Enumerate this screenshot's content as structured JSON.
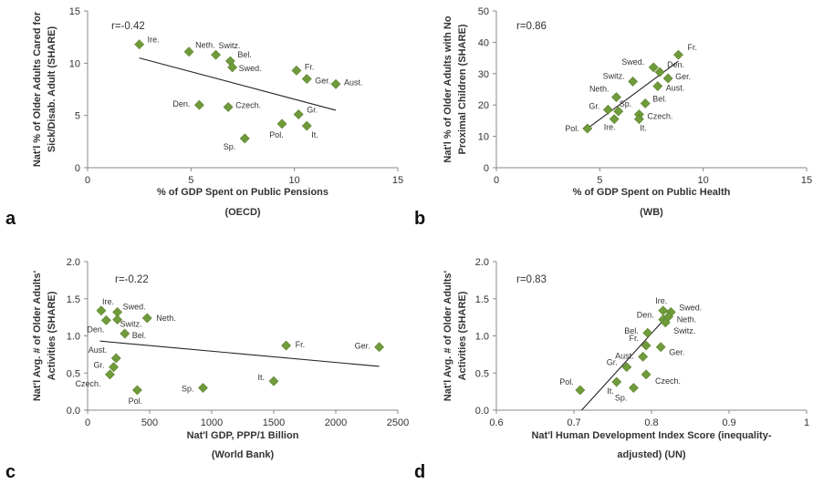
{
  "chart_data": [
    {
      "type": "scatter",
      "panel_letter": "a",
      "correlation": "r=-0.42",
      "xlabel": [
        "% of GDP Spent on Public Pensions",
        "(OECD)"
      ],
      "ylabel": [
        "Nat'l % of Older Adults Cared for",
        "Sick/Disab. Adult (SHARE)"
      ],
      "xlim": [
        0,
        15
      ],
      "ylim": [
        0,
        15
      ],
      "xticks": [
        0,
        5,
        10,
        15
      ],
      "yticks": [
        0,
        5,
        10,
        15
      ],
      "xtick_labels": [
        "0",
        "5",
        "10",
        "15"
      ],
      "ytick_labels": [
        "0",
        "5",
        "10",
        "15"
      ],
      "points": [
        {
          "label": "Ire.",
          "x": 2.5,
          "y": 11.8
        },
        {
          "label": "Neth.",
          "x": 4.9,
          "y": 11.1
        },
        {
          "label": "Switz.",
          "x": 6.2,
          "y": 10.8
        },
        {
          "label": "Bel.",
          "x": 6.9,
          "y": 10.2
        },
        {
          "label": "Swed.",
          "x": 7.0,
          "y": 9.6
        },
        {
          "label": "Fr.",
          "x": 10.1,
          "y": 9.3
        },
        {
          "label": "Ger.",
          "x": 10.6,
          "y": 8.5
        },
        {
          "label": "Aust.",
          "x": 12.0,
          "y": 8.0
        },
        {
          "label": "Den.",
          "x": 5.4,
          "y": 6.0
        },
        {
          "label": "Czech.",
          "x": 6.8,
          "y": 5.8
        },
        {
          "label": "Gr.",
          "x": 10.2,
          "y": 5.1
        },
        {
          "label": "Pol.",
          "x": 9.4,
          "y": 4.2
        },
        {
          "label": "It.",
          "x": 10.6,
          "y": 4.0
        },
        {
          "label": "Sp.",
          "x": 7.6,
          "y": 2.8
        }
      ],
      "trend": [
        [
          2.5,
          10.5
        ],
        [
          12.0,
          5.5
        ]
      ],
      "color": "#6f9b3a"
    },
    {
      "type": "scatter",
      "panel_letter": "b",
      "correlation": "r=0.86",
      "xlabel": [
        "% of GDP Spent on Public Health",
        "(WB)"
      ],
      "ylabel": [
        "Nat'l % of Older Adults with No",
        "Proximal Children (SHARE)"
      ],
      "xlim": [
        0,
        15
      ],
      "ylim": [
        0,
        50
      ],
      "xticks": [
        0,
        5,
        10,
        15
      ],
      "yticks": [
        0,
        10,
        20,
        30,
        40,
        50
      ],
      "xtick_labels": [
        "0",
        "5",
        "10",
        "15"
      ],
      "ytick_labels": [
        "0",
        "10",
        "20",
        "30",
        "40",
        "50"
      ],
      "points": [
        {
          "label": "Fr.",
          "x": 8.8,
          "y": 36
        },
        {
          "label": "Swed.",
          "x": 7.6,
          "y": 32
        },
        {
          "label": "Den.",
          "x": 7.9,
          "y": 30.5
        },
        {
          "label": "Ger.",
          "x": 8.3,
          "y": 28.5
        },
        {
          "label": "Switz.",
          "x": 6.6,
          "y": 27.5
        },
        {
          "label": "Aust.",
          "x": 7.8,
          "y": 26
        },
        {
          "label": "Neth.",
          "x": 5.8,
          "y": 22.5
        },
        {
          "label": "Bel.",
          "x": 7.2,
          "y": 20.5
        },
        {
          "label": "Gr.",
          "x": 5.4,
          "y": 18.5
        },
        {
          "label": "Sp.",
          "x": 5.9,
          "y": 18
        },
        {
          "label": "Czech.",
          "x": 6.9,
          "y": 17
        },
        {
          "label": "Ire.",
          "x": 5.7,
          "y": 15.5
        },
        {
          "label": "It.",
          "x": 6.9,
          "y": 15.5
        },
        {
          "label": "Pol.",
          "x": 4.4,
          "y": 12.5
        }
      ],
      "trend": [
        [
          4.3,
          12
        ],
        [
          8.8,
          34
        ]
      ],
      "color": "#6f9b3a"
    },
    {
      "type": "scatter",
      "panel_letter": "c",
      "correlation": "r=-0.22",
      "xlabel": [
        "Nat'l GDP, PPP/1 Billion",
        "(World Bank)"
      ],
      "ylabel": [
        "Nat'l Avg. # of Older Adults'",
        "Activities (SHARE)"
      ],
      "xlim": [
        0,
        2500
      ],
      "ylim": [
        0,
        2
      ],
      "xticks": [
        0,
        500,
        1000,
        1500,
        2000,
        2500
      ],
      "yticks": [
        0,
        0.5,
        1,
        1.5,
        2
      ],
      "xtick_labels": [
        "0",
        "500",
        "1000",
        "1500",
        "2000",
        "2500"
      ],
      "ytick_labels": [
        "0.0",
        "0.5",
        "1.0",
        "1.5",
        "2.0"
      ],
      "points": [
        {
          "label": "Ire.",
          "x": 110,
          "y": 1.34
        },
        {
          "label": "Swed.",
          "x": 240,
          "y": 1.32
        },
        {
          "label": "Den.",
          "x": 150,
          "y": 1.21
        },
        {
          "label": "Switz.",
          "x": 240,
          "y": 1.22
        },
        {
          "label": "Neth.",
          "x": 480,
          "y": 1.24
        },
        {
          "label": "Bel.",
          "x": 300,
          "y": 1.03
        },
        {
          "label": "Fr.",
          "x": 1600,
          "y": 0.87
        },
        {
          "label": "Ger.",
          "x": 2350,
          "y": 0.85
        },
        {
          "label": "Aust.",
          "x": 230,
          "y": 0.7
        },
        {
          "label": "Gr.",
          "x": 210,
          "y": 0.58
        },
        {
          "label": "Czech.",
          "x": 180,
          "y": 0.48
        },
        {
          "label": "It.",
          "x": 1500,
          "y": 0.39
        },
        {
          "label": "Sp.",
          "x": 930,
          "y": 0.3
        },
        {
          "label": "Pol.",
          "x": 400,
          "y": 0.27
        }
      ],
      "trend": [
        [
          100,
          0.93
        ],
        [
          2350,
          0.59
        ]
      ],
      "color": "#6f9b3a"
    },
    {
      "type": "scatter",
      "panel_letter": "d",
      "correlation": "r=0.83",
      "xlabel": [
        "Nat'l Human Development Index Score (inequality-",
        "adjusted) (UN)"
      ],
      "ylabel": [
        "Nat'l Avg. # of Older Adults'",
        "Activities (SHARE)"
      ],
      "xlim": [
        0.6,
        1
      ],
      "ylim": [
        0,
        2
      ],
      "xticks": [
        0.6,
        0.7,
        0.8,
        0.9,
        1
      ],
      "yticks": [
        0,
        0.5,
        1,
        1.5,
        2
      ],
      "xtick_labels": [
        "0.6",
        "0.7",
        "0.8",
        "0.9",
        "1"
      ],
      "ytick_labels": [
        "0.0",
        "0.5",
        "1.0",
        "1.5",
        "2.0"
      ],
      "points": [
        {
          "label": "Ire.",
          "x": 0.815,
          "y": 1.34
        },
        {
          "label": "Swed.",
          "x": 0.825,
          "y": 1.32
        },
        {
          "label": "Den.",
          "x": 0.815,
          "y": 1.22
        },
        {
          "label": "Neth.",
          "x": 0.822,
          "y": 1.26
        },
        {
          "label": "Switz.",
          "x": 0.818,
          "y": 1.18
        },
        {
          "label": "Bel.",
          "x": 0.795,
          "y": 1.04
        },
        {
          "label": "Fr.",
          "x": 0.793,
          "y": 0.87
        },
        {
          "label": "Ger.",
          "x": 0.812,
          "y": 0.85
        },
        {
          "label": "Aust.",
          "x": 0.789,
          "y": 0.72
        },
        {
          "label": "Gr.",
          "x": 0.768,
          "y": 0.58
        },
        {
          "label": "Czech.",
          "x": 0.793,
          "y": 0.48
        },
        {
          "label": "It.",
          "x": 0.755,
          "y": 0.38
        },
        {
          "label": "Sp.",
          "x": 0.777,
          "y": 0.3
        },
        {
          "label": "Pol.",
          "x": 0.708,
          "y": 0.27
        }
      ],
      "trend": [
        [
          0.71,
          0.0
        ],
        [
          0.825,
          1.32
        ]
      ],
      "color": "#6f9b3a"
    }
  ]
}
